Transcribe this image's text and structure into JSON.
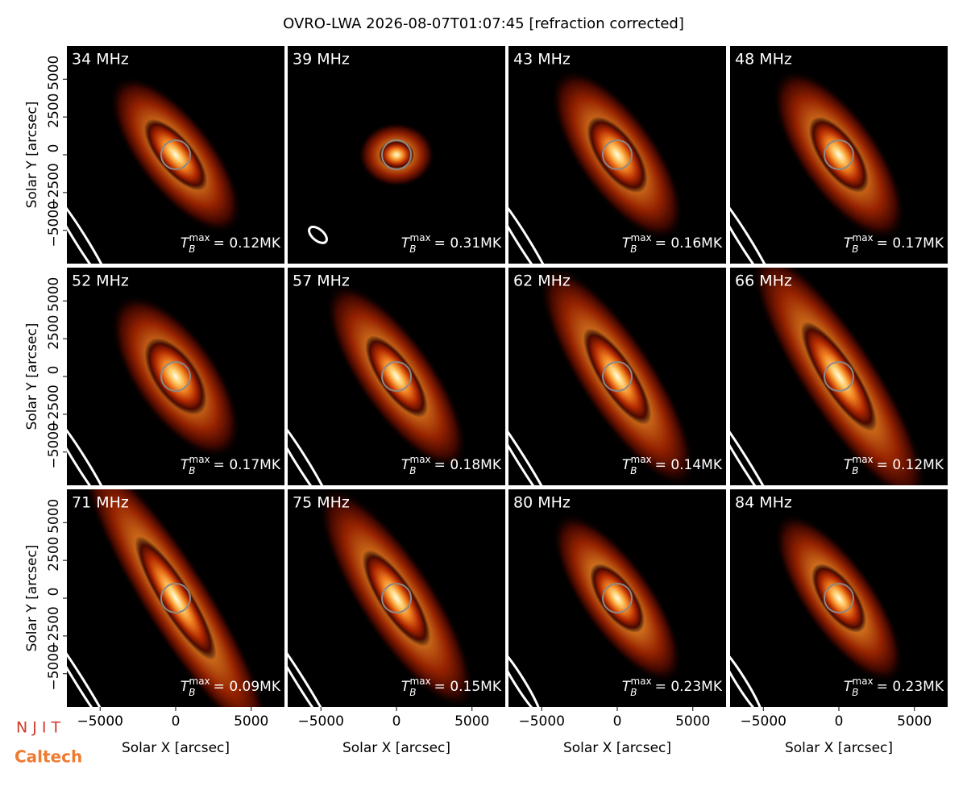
{
  "title": "OVRO-LWA 2026-08-07T01:07:45 [refraction corrected]",
  "logos": [
    "N J I T",
    "Caltech"
  ],
  "chart_data": [
    {
      "type": "image",
      "title": "34 MHz",
      "xlim": [
        -7200,
        7200
      ],
      "ylim": [
        -7200,
        7200
      ],
      "ylabel": "Solar Y [arcsec]",
      "yticks": [
        {
          "value": -5000,
          "label": "−5000"
        },
        {
          "value": -2500,
          "label": "−2500"
        },
        0,
        2500,
        5000
      ],
      "annotation": {
        "symbol": "T",
        "sub": "B",
        "sup": "max",
        "text": "= 0.12MK"
      }
    },
    {
      "type": "image",
      "title": "39 MHz",
      "xlim": [
        -7200,
        7200
      ],
      "ylim": [
        -7200,
        7200
      ],
      "annotation": {
        "symbol": "T",
        "sub": "B",
        "sup": "max",
        "text": "= 0.31MK"
      }
    },
    {
      "type": "image",
      "title": "43 MHz",
      "xlim": [
        -7200,
        7200
      ],
      "ylim": [
        -7200,
        7200
      ],
      "annotation": {
        "symbol": "T",
        "sub": "B",
        "sup": "max",
        "text": "= 0.16MK"
      }
    },
    {
      "type": "image",
      "title": "48 MHz",
      "xlim": [
        -7200,
        7200
      ],
      "ylim": [
        -7200,
        7200
      ],
      "annotation": {
        "symbol": "T",
        "sub": "B",
        "sup": "max",
        "text": "= 0.17MK"
      }
    },
    {
      "type": "image",
      "title": "52 MHz",
      "xlim": [
        -7200,
        7200
      ],
      "ylim": [
        -7200,
        7200
      ],
      "ylabel": "Solar Y [arcsec]",
      "yticks": [
        {
          "value": -5000,
          "label": "−5000"
        },
        {
          "value": -2500,
          "label": "−2500"
        },
        0,
        2500,
        5000
      ],
      "annotation": {
        "symbol": "T",
        "sub": "B",
        "sup": "max",
        "text": "= 0.17MK"
      }
    },
    {
      "type": "image",
      "title": "57 MHz",
      "xlim": [
        -7200,
        7200
      ],
      "ylim": [
        -7200,
        7200
      ],
      "annotation": {
        "symbol": "T",
        "sub": "B",
        "sup": "max",
        "text": "= 0.18MK"
      }
    },
    {
      "type": "image",
      "title": "62 MHz",
      "xlim": [
        -7200,
        7200
      ],
      "ylim": [
        -7200,
        7200
      ],
      "annotation": {
        "symbol": "T",
        "sub": "B",
        "sup": "max",
        "text": "= 0.14MK"
      }
    },
    {
      "type": "image",
      "title": "66 MHz",
      "xlim": [
        -7200,
        7200
      ],
      "ylim": [
        -7200,
        7200
      ],
      "annotation": {
        "symbol": "T",
        "sub": "B",
        "sup": "max",
        "text": "= 0.12MK"
      }
    },
    {
      "type": "image",
      "title": "71 MHz",
      "xlim": [
        -7200,
        7200
      ],
      "ylim": [
        -7200,
        7200
      ],
      "ylabel": "Solar Y [arcsec]",
      "yticks": [
        {
          "value": -5000,
          "label": "−5000"
        },
        {
          "value": -2500,
          "label": "−2500"
        },
        0,
        2500,
        5000
      ],
      "xlabel": "Solar X [arcsec]",
      "xticks": [
        {
          "value": -5000,
          "label": "−5000"
        },
        0,
        5000
      ],
      "annotation": {
        "symbol": "T",
        "sub": "B",
        "sup": "max",
        "text": "= 0.09MK"
      }
    },
    {
      "type": "image",
      "title": "75 MHz",
      "xlim": [
        -7200,
        7200
      ],
      "ylim": [
        -7200,
        7200
      ],
      "xlabel": "Solar X [arcsec]",
      "xticks": [
        {
          "value": -5000,
          "label": "−5000"
        },
        0,
        5000
      ],
      "annotation": {
        "symbol": "T",
        "sub": "B",
        "sup": "max",
        "text": "= 0.15MK"
      }
    },
    {
      "type": "image",
      "title": "80 MHz",
      "xlim": [
        -7200,
        7200
      ],
      "ylim": [
        -7200,
        7200
      ],
      "xlabel": "Solar X [arcsec]",
      "xticks": [
        {
          "value": -5000,
          "label": "−5000"
        },
        0,
        5000
      ],
      "annotation": {
        "symbol": "T",
        "sub": "B",
        "sup": "max",
        "text": "= 0.23MK"
      }
    },
    {
      "type": "image",
      "title": "84 MHz",
      "xlim": [
        -7200,
        7200
      ],
      "ylim": [
        -7200,
        7200
      ],
      "xlabel": "Solar X [arcsec]",
      "xticks": [
        {
          "value": -5000,
          "label": "−5000"
        },
        0,
        5000
      ],
      "annotation": {
        "symbol": "T",
        "sub": "B",
        "sup": "max",
        "text": "= 0.23MK"
      }
    }
  ]
}
